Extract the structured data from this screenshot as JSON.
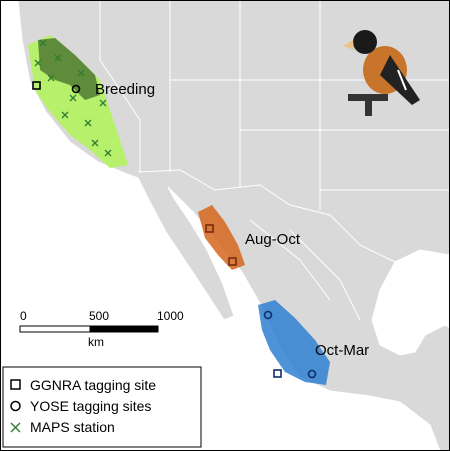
{
  "map_labels": {
    "breeding": "Breeding",
    "aug_oct": "Aug-Oct",
    "oct_mar": "Oct-Mar"
  },
  "scale_bar": {
    "ticks": [
      "0",
      "500",
      "1000"
    ],
    "unit": "km"
  },
  "legend": {
    "items": [
      "GGNRA tagging site",
      "YOSE tagging sites",
      "MAPS station"
    ]
  }
}
